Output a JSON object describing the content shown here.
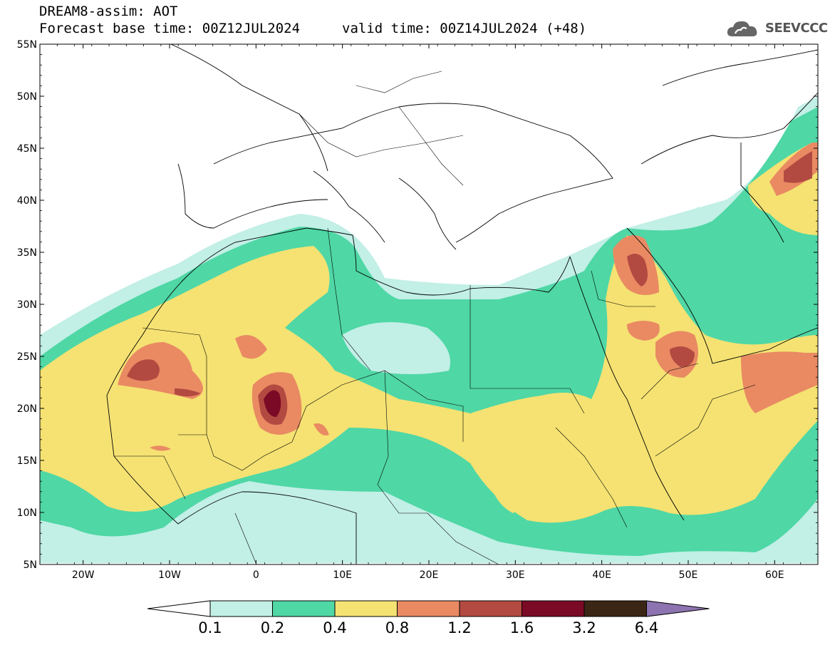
{
  "title": {
    "line1": "DREAM8-assim: AOT",
    "base_time": "Forecast base time: 00Z12JUL2024",
    "valid_time": "valid time: 00Z14JUL2024 (+48)"
  },
  "logo": {
    "text": "SEEVCCC",
    "icon": "cloud-icon"
  },
  "axes": {
    "lat_labels": [
      "55N",
      "50N",
      "45N",
      "40N",
      "35N",
      "30N",
      "25N",
      "20N",
      "15N",
      "10N",
      "5N"
    ],
    "lon_labels": [
      "20W",
      "10W",
      "0",
      "10E",
      "20E",
      "30E",
      "40E",
      "50E",
      "60E"
    ]
  },
  "colorbar": {
    "colors": [
      "#c2efe6",
      "#4fd7a6",
      "#f5e272",
      "#e98a63",
      "#b34a41",
      "#7b0a26",
      "#3b2615",
      "#8d73b0"
    ],
    "under_color": "#ffffff",
    "tick_labels": [
      "0.1",
      "0.2",
      "0.4",
      "0.8",
      "1.2",
      "1.6",
      "3.2",
      "6.4"
    ]
  },
  "map_extent": {
    "lon_range": [
      -25,
      65
    ],
    "lat_range": [
      5,
      55
    ]
  }
}
